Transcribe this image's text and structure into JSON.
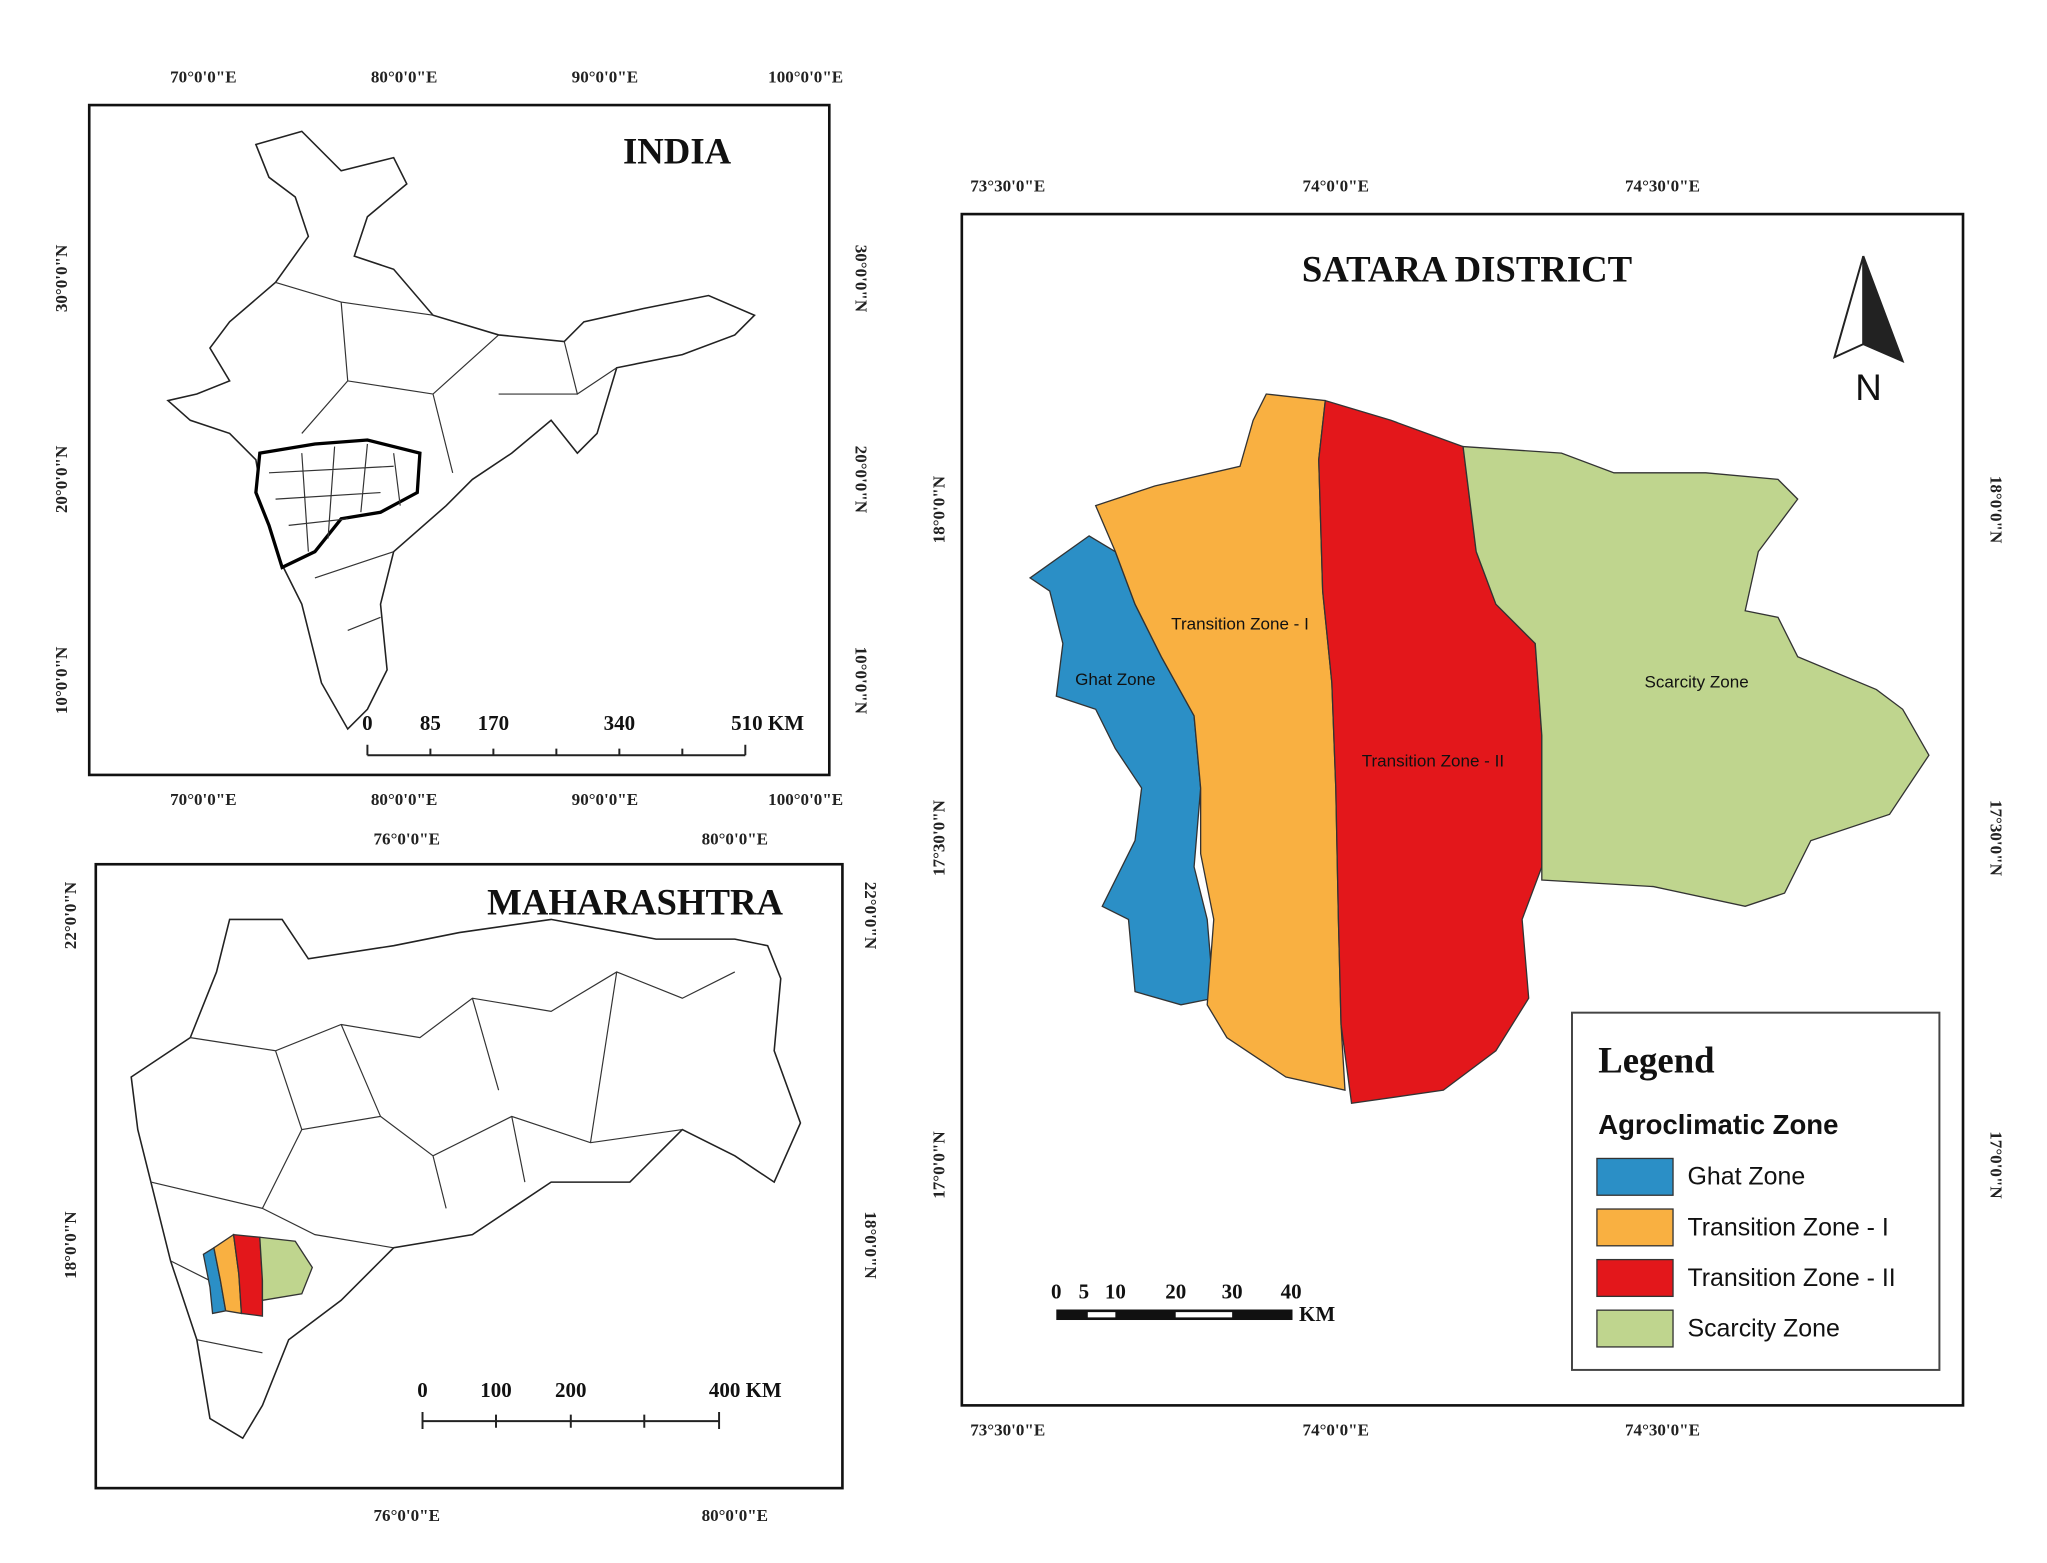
{
  "india": {
    "title": "INDIA",
    "lon_labels": [
      "70°0'0\"E",
      "80°0'0\"E",
      "90°0'0\"E",
      "100°0'0\"E"
    ],
    "lat_labels": [
      "30°0'0\"N",
      "20°0'0\"N",
      "10°0'0\"N"
    ],
    "scale_labels": [
      "0",
      "85",
      "170",
      "340",
      "510 KM"
    ]
  },
  "maharashtra": {
    "title": "MAHARASHTRA",
    "lon_labels": [
      "76°0'0\"E",
      "80°0'0\"E"
    ],
    "lat_labels": [
      "22°0'0\"N",
      "18°0'0\"N"
    ],
    "scale_labels": [
      "0",
      "100",
      "200",
      "400 KM"
    ]
  },
  "satara": {
    "title": "SATARA DISTRICT",
    "lon_labels": [
      "73°30'0\"E",
      "74°0'0\"E",
      "74°30'0\"E"
    ],
    "lat_labels": [
      "18°0'0\"N",
      "17°30'0\"N",
      "17°0'0\"N"
    ],
    "north": "N",
    "zones": [
      {
        "label": "Ghat Zone",
        "color": "#2b8fc6"
      },
      {
        "label": "Transition Zone - I",
        "color": "#f9b041"
      },
      {
        "label": "Transition Zone - II",
        "color": "#e3171b"
      },
      {
        "label": "Scarcity Zone",
        "color": "#bfd58e"
      }
    ],
    "legend": {
      "title": "Legend",
      "subtitle": "Agroclimatic Zone",
      "items": [
        "Ghat Zone",
        "Transition Zone - I",
        "Transition Zone - II",
        "Scarcity Zone"
      ]
    },
    "scale_labels": [
      "0",
      "5",
      "10",
      "20",
      "30",
      "40"
    ],
    "scale_unit": "KM"
  }
}
